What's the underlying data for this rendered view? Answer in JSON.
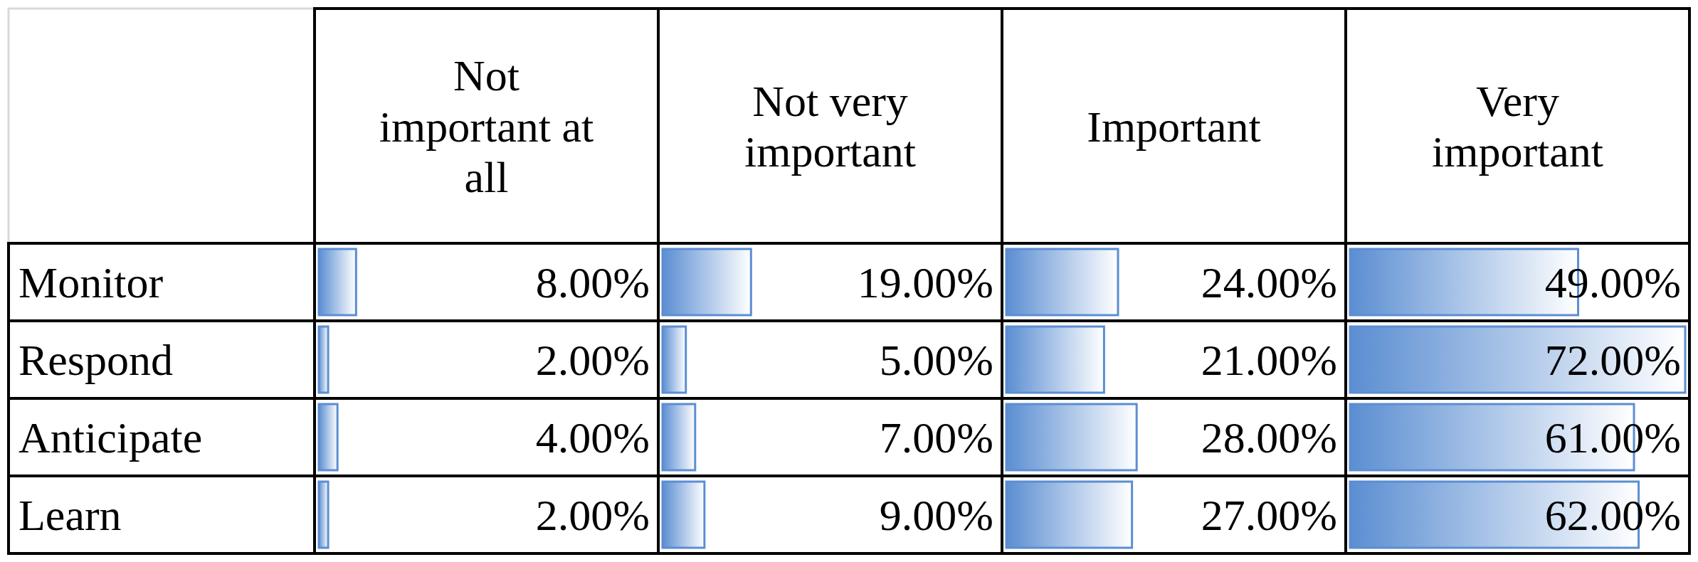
{
  "chart_data": {
    "type": "heatmap",
    "categories": [
      "Not important at all",
      "Not very important",
      "Important",
      "Very important"
    ],
    "y_categories": [
      "Monitor",
      "Respond",
      "Anticipate",
      "Learn"
    ],
    "cells": [
      [
        8,
        19,
        24,
        49
      ],
      [
        2,
        5,
        21,
        72
      ],
      [
        4,
        7,
        28,
        61
      ],
      [
        2,
        9,
        27,
        62
      ]
    ],
    "cell_labels": [
      [
        "8.00%",
        "19.00%",
        "24.00%",
        "49.00%"
      ],
      [
        "2.00%",
        "5.00%",
        "21.00%",
        "72.00%"
      ],
      [
        "4.00%",
        "7.00%",
        "28.00%",
        "61.00%"
      ],
      [
        "2.00%",
        "9.00%",
        "27.00%",
        "62.00%"
      ]
    ],
    "color": "#5b8ed2"
  }
}
